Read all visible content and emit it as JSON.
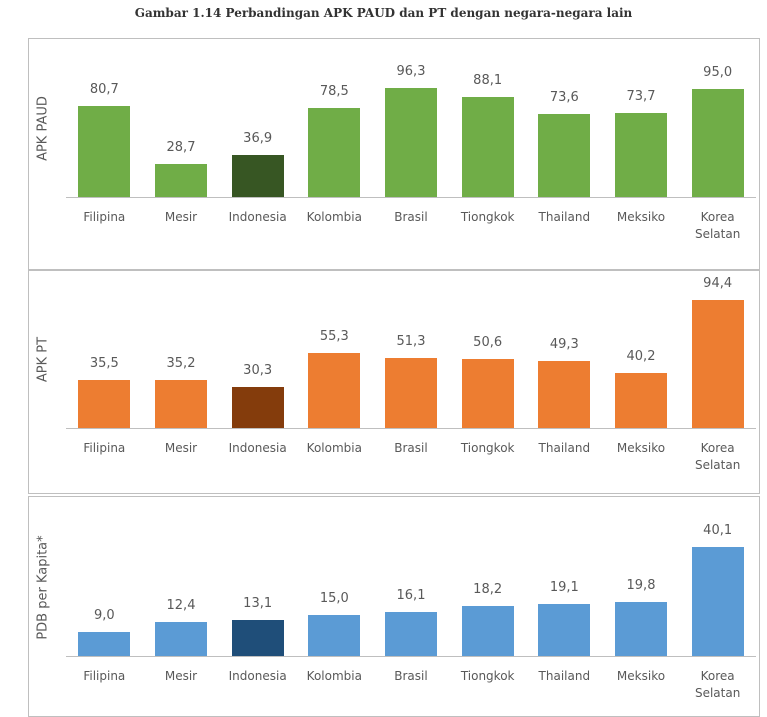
{
  "title": "Gambar 1.14 Perbandingan APK PAUD dan PT dengan negara-negara lain",
  "chart_data": [
    {
      "type": "bar",
      "ylabel": "APK PAUD",
      "categories": [
        "Filipina",
        "Mesir",
        "Indonesia",
        "Kolombia",
        "Brasil",
        "Tiongkok",
        "Thailand",
        "Meksiko",
        "Korea Selatan"
      ],
      "values": [
        80.7,
        28.7,
        36.9,
        78.5,
        96.3,
        88.1,
        73.6,
        73.7,
        95.0
      ],
      "value_labels": [
        "80,7",
        "28,7",
        "36,9",
        "78,5",
        "96,3",
        "88,1",
        "73,6",
        "73,7",
        "95,0"
      ],
      "colors": [
        "#70ad47",
        "#70ad47",
        "#375623",
        "#70ad47",
        "#70ad47",
        "#70ad47",
        "#70ad47",
        "#70ad47",
        "#70ad47"
      ],
      "ylim": [
        0,
        120
      ]
    },
    {
      "type": "bar",
      "ylabel": "APK PT",
      "categories": [
        "Filipina",
        "Mesir",
        "Indonesia",
        "Kolombia",
        "Brasil",
        "Tiongkok",
        "Thailand",
        "Meksiko",
        "Korea Selatan"
      ],
      "values": [
        35.5,
        35.2,
        30.3,
        55.3,
        51.3,
        50.6,
        49.3,
        40.2,
        94.4
      ],
      "value_labels": [
        "35,5",
        "35,2",
        "30,3",
        "55,3",
        "51,3",
        "50,6",
        "49,3",
        "40,2",
        "94,4"
      ],
      "colors": [
        "#ed7d31",
        "#ed7d31",
        "#843c0c",
        "#ed7d31",
        "#ed7d31",
        "#ed7d31",
        "#ed7d31",
        "#ed7d31",
        "#ed7d31"
      ],
      "ylim": [
        0,
        100
      ]
    },
    {
      "type": "bar",
      "ylabel": "PDB per Kapita*",
      "categories": [
        "Filipina",
        "Mesir",
        "Indonesia",
        "Kolombia",
        "Brasil",
        "Tiongkok",
        "Thailand",
        "Meksiko",
        "Korea Selatan"
      ],
      "values": [
        9.0,
        12.4,
        13.1,
        15.0,
        16.1,
        18.2,
        19.1,
        19.8,
        40.1
      ],
      "value_labels": [
        "9,0",
        "12,4",
        "13,1",
        "15,0",
        "16,1",
        "18,2",
        "19,1",
        "19,8",
        "40,1"
      ],
      "colors": [
        "#5b9bd5",
        "#5b9bd5",
        "#1f4e79",
        "#5b9bd5",
        "#5b9bd5",
        "#5b9bd5",
        "#5b9bd5",
        "#5b9bd5",
        "#5b9bd5"
      ],
      "ylim": [
        0,
        50
      ]
    }
  ]
}
